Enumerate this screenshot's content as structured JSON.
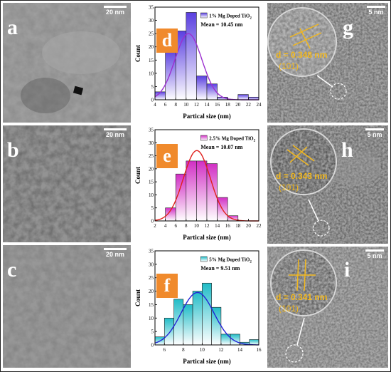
{
  "panels": {
    "a": {
      "letter": "a",
      "scale": "20 nm"
    },
    "b": {
      "letter": "b",
      "scale": "20 nm"
    },
    "c": {
      "letter": "c",
      "scale": "20 nm"
    },
    "g": {
      "letter": "g",
      "scale": "5 nm",
      "d_spacing": "d = 0.348 nm",
      "plane": "(101)"
    },
    "h": {
      "letter": "h",
      "scale": "5 nm",
      "d_spacing": "d = 0.343 nm",
      "plane": "(101)"
    },
    "i": {
      "letter": "i",
      "scale": "5 nm",
      "d_spacing": "d = 0.341 nm",
      "plane": "(101)"
    }
  },
  "colors": {
    "badge": "#f08a2c",
    "d_text": "#f2b81e"
  },
  "chart_data": [
    {
      "type": "bar",
      "panel": "d",
      "legend": "1% Mg Doped TiO",
      "legend_sub": "2",
      "mean": "Mean = 10.45  nm",
      "xlabel": "Partical size (nm)",
      "ylabel": "Count",
      "xlim": [
        4,
        24
      ],
      "ylim": [
        0,
        35
      ],
      "xticks": [
        "4",
        "6",
        "8",
        "10",
        "12",
        "14",
        "16",
        "18",
        "20",
        "22",
        "24"
      ],
      "yticks": [
        "0",
        "5",
        "10",
        "15",
        "20",
        "25",
        "30",
        "35"
      ],
      "bin_width": 2,
      "bins": [
        5,
        7,
        9,
        11,
        13,
        15,
        17,
        19,
        21,
        23
      ],
      "values": [
        3,
        19,
        26,
        33,
        9,
        6,
        1,
        0,
        2,
        1
      ],
      "fit_mean": 10.45,
      "fit_sigma": 2.6,
      "fit_peak": 25,
      "bar_color": "#5a3fe0",
      "fit_color": "#9b2fcf"
    },
    {
      "type": "bar",
      "panel": "e",
      "legend": "2.5% Mg Doped TiO",
      "legend_sub": "2",
      "mean": "Mean = 10.07  nm",
      "xlabel": "Partical size (nm)",
      "ylabel": "Count",
      "xlim": [
        2,
        22
      ],
      "ylim": [
        0,
        35
      ],
      "xticks": [
        "2",
        "4",
        "6",
        "8",
        "10",
        "12",
        "14",
        "16",
        "18",
        "20",
        "22"
      ],
      "yticks": [
        "0",
        "5",
        "10",
        "15",
        "20",
        "25",
        "30",
        "35"
      ],
      "bin_width": 2,
      "bins": [
        5,
        7,
        9,
        11,
        13,
        15,
        17
      ],
      "values": [
        5,
        18,
        23,
        23,
        22,
        9,
        2
      ],
      "fit_mean": 10.07,
      "fit_sigma": 2.6,
      "fit_peak": 27,
      "bar_color": "#d12fc4",
      "fit_color": "#e0201c"
    },
    {
      "type": "bar",
      "panel": "f",
      "legend": "5% Mg Doped TiO",
      "legend_sub": "2",
      "mean": "Mean = 9.51 nm",
      "xlabel": "Partical size (nm)",
      "ylabel": "Count",
      "xlim": [
        5,
        16
      ],
      "ylim": [
        0,
        35
      ],
      "xticks": [
        "6",
        "8",
        "10",
        "12",
        "14",
        "16"
      ],
      "yticks": [
        "0",
        "5",
        "10",
        "15",
        "20",
        "25",
        "30",
        "35"
      ],
      "bin_width": 1,
      "bins": [
        5.5,
        6.5,
        7.5,
        8.5,
        9.5,
        10.5,
        11.5,
        12.5,
        13.5,
        14.5,
        15.5
      ],
      "values": [
        3,
        10,
        17,
        15,
        20,
        23,
        14,
        4,
        4,
        1,
        2
      ],
      "fit_mean": 9.51,
      "fit_sigma": 1.75,
      "fit_peak": 19.5,
      "bar_color": "#21bcc7",
      "fit_color": "#2323d6"
    }
  ]
}
